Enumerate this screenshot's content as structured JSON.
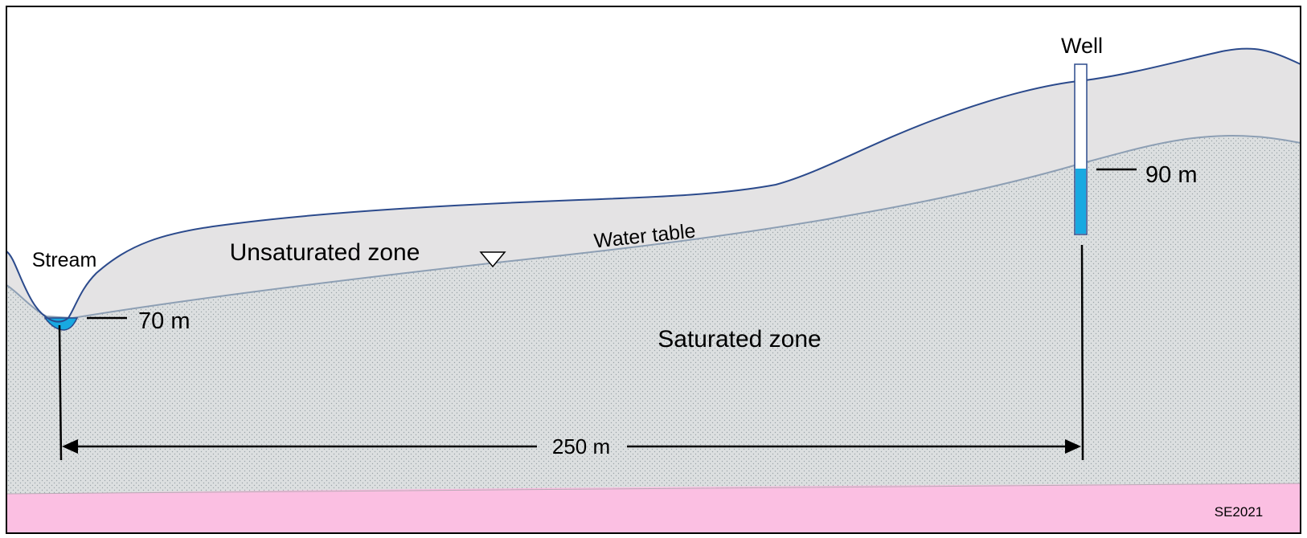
{
  "labels": {
    "well": "Well",
    "stream": "Stream",
    "unsaturated_zone": "Unsaturated zone",
    "water_table": "Water table",
    "saturated_zone": "Saturated zone",
    "stream_level": "70 m",
    "well_level": "90 m",
    "distance": "250 m",
    "credit": "SE2021"
  },
  "colors": {
    "background": "#ffffff",
    "unsaturated": "#e4e3e4",
    "saturated": "#dcdfe0",
    "bedrock": "#fbbfe2",
    "water": "#18a9e1",
    "ground_line": "#2b4a8c",
    "water_table_line": "#8d9fb4",
    "border": "#000000"
  },
  "icons": {
    "water_table_symbol": "inverted-triangle-icon"
  }
}
